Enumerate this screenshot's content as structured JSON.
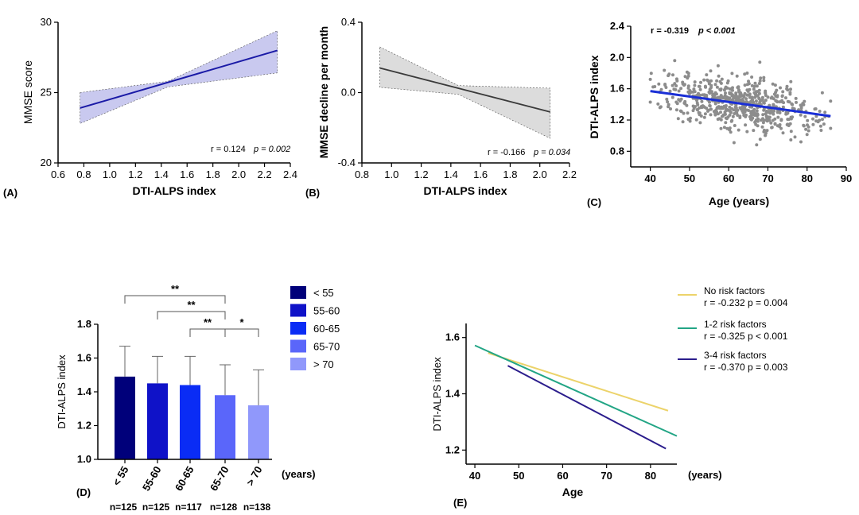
{
  "chart_data": [
    {
      "panel": "(A)",
      "type": "line",
      "xlabel": "DTI-ALPS index",
      "ylabel": "MMSE score",
      "xlim": [
        0.6,
        2.4
      ],
      "ylim": [
        20,
        30
      ],
      "xticks": [
        "0.6",
        "0.8",
        "1.0",
        "1.2",
        "1.4",
        "1.6",
        "1.8",
        "2.0",
        "2.2",
        "2.4"
      ],
      "yticks": [
        "20",
        "25",
        "30"
      ],
      "line": {
        "x": [
          0.77,
          2.3
        ],
        "y": [
          23.9,
          28.0
        ]
      },
      "ci_upper": {
        "x": [
          0.77,
          1.45,
          2.3
        ],
        "y": [
          25.0,
          25.8,
          29.4
        ]
      },
      "ci_lower": {
        "x": [
          0.77,
          1.45,
          2.3
        ],
        "y": [
          22.8,
          25.4,
          26.4
        ]
      },
      "line_color": "#1a1aa6",
      "band_color": "#c9c9ef",
      "stat_r": "r = 0.124",
      "stat_p": "p = 0.002"
    },
    {
      "panel": "(B)",
      "type": "line",
      "xlabel": "DTI-ALPS index",
      "ylabel": "MMSE decline per month",
      "xlim": [
        0.8,
        2.2
      ],
      "ylim": [
        -0.4,
        0.4
      ],
      "xticks": [
        "0.8",
        "1.0",
        "1.2",
        "1.4",
        "1.6",
        "1.8",
        "2.0",
        "2.2"
      ],
      "yticks": [
        "-0.4",
        "0.0",
        "0.4"
      ],
      "line": {
        "x": [
          0.92,
          2.07
        ],
        "y": [
          0.14,
          -0.11
        ]
      },
      "ci_upper": {
        "x": [
          0.92,
          1.45,
          2.07
        ],
        "y": [
          0.26,
          0.04,
          0.025
        ]
      },
      "ci_lower": {
        "x": [
          0.92,
          1.45,
          2.07
        ],
        "y": [
          0.03,
          -0.01,
          -0.26
        ]
      },
      "line_color": "#3a3a3a",
      "band_color": "#dcdcdc",
      "stat_r": "r = -0.166",
      "stat_p": "p = 0.034"
    },
    {
      "panel": "(C)",
      "type": "scatter",
      "xlabel": "Age  (years)",
      "ylabel": "DTI-ALPS index",
      "xlim": [
        35,
        90
      ],
      "ylim": [
        0.6,
        2.4
      ],
      "xticks": [
        "40",
        "50",
        "60",
        "70",
        "80",
        "90"
      ],
      "yticks": [
        "0.8",
        "1.2",
        "1.6",
        "2.0",
        "2.4"
      ],
      "points": {
        "n": 633,
        "seed": 12345,
        "x_range": [
          40,
          86
        ],
        "y_sd": 0.16
      },
      "fit": {
        "x": [
          40,
          86
        ],
        "y": [
          1.57,
          1.25
        ]
      },
      "point_color": "#8c8c8c",
      "fit_color": "#1a2fd6",
      "stat_r": "r = -0.319",
      "stat_p": "p < 0.001"
    },
    {
      "panel": "(D)",
      "type": "bar",
      "ylabel": "DTI-ALPS index",
      "xunit": "(years)",
      "ylim": [
        1.0,
        1.8
      ],
      "yticks": [
        "1.0",
        "1.2",
        "1.4",
        "1.6",
        "1.8"
      ],
      "categories": [
        "< 55",
        "55-60",
        "60-65",
        "65-70",
        "> 70"
      ],
      "values": [
        1.49,
        1.45,
        1.44,
        1.38,
        1.32
      ],
      "errors": [
        0.18,
        0.16,
        0.17,
        0.18,
        0.21
      ],
      "counts": [
        "n=125",
        "n=125",
        "n=117",
        "n=128",
        "n=138"
      ],
      "colors": [
        "#00007a",
        "#0f12c8",
        "#0a2cf5",
        "#5a66fa",
        "#9098fb"
      ],
      "legend": [
        "< 55",
        "55-60",
        "60-65",
        "65-70",
        "> 70"
      ],
      "significance": [
        {
          "from": 0,
          "to": 3,
          "label": "**"
        },
        {
          "from": 1,
          "to": 3,
          "label": "**"
        },
        {
          "from": 2,
          "to": 3,
          "label": "**"
        },
        {
          "from": 3,
          "to": 4,
          "label": "*"
        }
      ]
    },
    {
      "panel": "(E)",
      "type": "line",
      "xlabel": "Age",
      "xunit": "(years)",
      "ylabel": "DTI-ALPS index",
      "xlim": [
        38,
        86
      ],
      "ylim": [
        1.15,
        1.65
      ],
      "xticks": [
        "40",
        "50",
        "60",
        "70",
        "80"
      ],
      "yticks": [
        "1.2",
        "1.4",
        "1.6"
      ],
      "series": [
        {
          "name": "No risk factors",
          "stat": "r = -0.232 p = 0.004",
          "color": "#ecd36a",
          "x": [
            43,
            84
          ],
          "y": [
            1.545,
            1.34
          ]
        },
        {
          "name": "1-2 risk factors",
          "stat": "r = -0.325 p < 0.001",
          "color": "#22a585",
          "x": [
            40,
            86
          ],
          "y": [
            1.572,
            1.25
          ]
        },
        {
          "name": "3-4 risk factors",
          "stat": "r = -0.370 p = 0.003",
          "color": "#2b1d8c",
          "x": [
            47.5,
            83.5
          ],
          "y": [
            1.5,
            1.205
          ]
        }
      ]
    }
  ]
}
